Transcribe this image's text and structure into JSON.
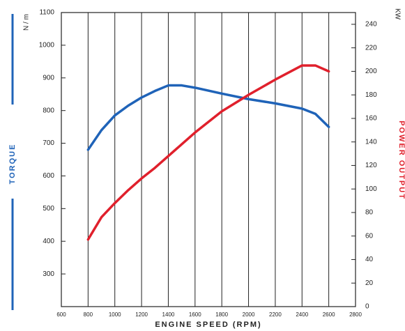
{
  "chart_data": {
    "type": "line",
    "x_label": "ENGINE SPEED (RPM)",
    "y_label": "TORQUE",
    "y_unit": "N / m",
    "y2_label": "POWER OUTPUT",
    "y2_unit": "KW",
    "x": [
      800,
      900,
      1000,
      1100,
      1200,
      1300,
      1400,
      1500,
      1600,
      1800,
      2000,
      2200,
      2400,
      2500,
      2600
    ],
    "xlim": [
      600,
      2800
    ],
    "xticks": [
      600,
      800,
      1000,
      1200,
      1400,
      1600,
      1800,
      2000,
      2200,
      2400,
      2600,
      2800
    ],
    "ylim": [
      200,
      1100
    ],
    "yticks": [
      300,
      400,
      500,
      600,
      700,
      800,
      900,
      1000,
      1100
    ],
    "y2lim": [
      0,
      250
    ],
    "y2ticks": [
      0,
      20,
      40,
      60,
      80,
      100,
      120,
      140,
      160,
      180,
      200,
      220,
      240
    ],
    "grid": true,
    "series": [
      {
        "name": "TORQUE",
        "color": "#1f63b8",
        "values": [
          680,
          740,
          785,
          815,
          840,
          860,
          877,
          877,
          870,
          852,
          835,
          822,
          806,
          790,
          750
        ]
      },
      {
        "name": "POWER OUTPUT",
        "color": "#e0202c",
        "axis": "y2",
        "values": [
          57,
          76,
          88,
          99,
          109,
          118,
          128,
          138,
          148,
          166,
          180,
          193,
          205,
          205,
          200
        ]
      }
    ]
  }
}
